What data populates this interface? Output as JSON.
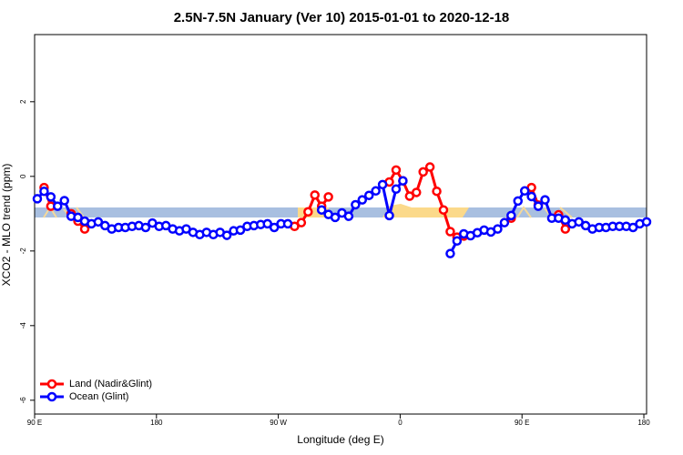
{
  "chart_data": {
    "type": "line",
    "title": "2.5N-7.5N January (Ver 10)   2015-01-01 to 2020-12-18",
    "x_label": "Longitude (deg E)",
    "y_label": "XCO2 - MLO trend (ppm)",
    "x": [
      92,
      97,
      102,
      107,
      112,
      117,
      122,
      127,
      132,
      137,
      142,
      147,
      152,
      157,
      162,
      167,
      172,
      177,
      182,
      187,
      192,
      197,
      202,
      207,
      212,
      217,
      222,
      227,
      232,
      237,
      242,
      247,
      252,
      257,
      262,
      267,
      272,
      277,
      282,
      287,
      292,
      297,
      302,
      307,
      312,
      317,
      322,
      327,
      332,
      337,
      342,
      347,
      352,
      357,
      362,
      367,
      372,
      377,
      382,
      387,
      392,
      397,
      402,
      407,
      412,
      417,
      422,
      427,
      432,
      437,
      442,
      447,
      452,
      457,
      462,
      467,
      472,
      477,
      482,
      487,
      492,
      497,
      502,
      507,
      512,
      517,
      522,
      527,
      532,
      537,
      542
    ],
    "series": [
      {
        "name": "Land (Nadir&Glint)",
        "color": "#ff0000",
        "values": [
          null,
          -0.3,
          -0.8,
          null,
          null,
          -1.0,
          -1.2,
          -1.41,
          null,
          null,
          null,
          null,
          null,
          null,
          null,
          null,
          null,
          null,
          null,
          null,
          null,
          null,
          null,
          null,
          null,
          null,
          null,
          null,
          null,
          null,
          null,
          null,
          null,
          null,
          null,
          null,
          null,
          null,
          -1.34,
          -1.24,
          -0.95,
          -0.5,
          -0.8,
          -0.55,
          null,
          null,
          null,
          null,
          null,
          null,
          null,
          null,
          -0.15,
          0.17,
          -0.12,
          -0.53,
          -0.43,
          0.12,
          0.25,
          -0.4,
          -0.9,
          -1.48,
          -1.63,
          -1.6,
          null,
          null,
          null,
          null,
          null,
          null,
          -1.12,
          null,
          null,
          -0.3,
          -0.77,
          null,
          null,
          -1.03,
          -1.41,
          null,
          null,
          null,
          null,
          null,
          null,
          null,
          null,
          null,
          null,
          null,
          null
        ]
      },
      {
        "name": "Ocean (Glint)",
        "color": "#0000ff",
        "values": [
          -0.6,
          -0.4,
          -0.55,
          -0.8,
          -0.65,
          -1.07,
          -1.1,
          -1.2,
          -1.27,
          -1.22,
          -1.32,
          -1.41,
          -1.37,
          -1.37,
          -1.34,
          -1.32,
          -1.37,
          -1.25,
          -1.34,
          -1.32,
          -1.41,
          -1.46,
          -1.41,
          -1.5,
          -1.56,
          -1.5,
          -1.56,
          -1.5,
          -1.58,
          -1.46,
          -1.44,
          -1.34,
          -1.32,
          -1.29,
          -1.27,
          -1.37,
          -1.27,
          -1.27,
          null,
          null,
          null,
          null,
          -0.9,
          -1.02,
          -1.1,
          -0.98,
          -1.07,
          -0.76,
          -0.63,
          -0.51,
          -0.39,
          -0.22,
          -1.05,
          -0.34,
          -0.12,
          null,
          null,
          null,
          null,
          null,
          null,
          -2.07,
          -1.73,
          -1.54,
          -1.59,
          -1.51,
          -1.44,
          -1.49,
          -1.41,
          -1.24,
          -1.05,
          -0.66,
          -0.39,
          -0.54,
          -0.8,
          -0.63,
          -1.12,
          -1.12,
          -1.17,
          -1.27,
          -1.22,
          -1.32,
          -1.41,
          -1.37,
          -1.37,
          -1.34,
          -1.34,
          -1.34,
          -1.37,
          -1.27,
          -1.22
        ]
      }
    ],
    "xlim": [
      90,
      542
    ],
    "xticks": [
      {
        "value": 90,
        "label": "90 E"
      },
      180,
      {
        "value": 270,
        "label": "90 W"
      },
      {
        "value": 360,
        "label": "0"
      },
      {
        "value": 450,
        "label": "90 E"
      },
      {
        "value": 540,
        "label": "180"
      }
    ],
    "ylim": [
      -6.37,
      3.8
    ],
    "yticks": [
      -6,
      -4,
      -2,
      0,
      2
    ],
    "legend": "bottom-left"
  }
}
